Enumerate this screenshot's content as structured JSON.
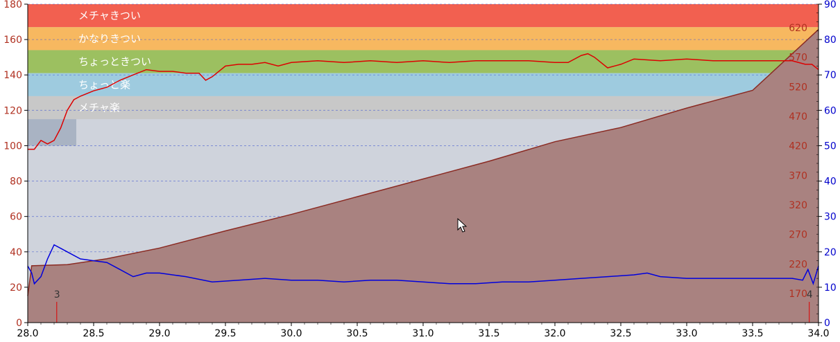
{
  "chart_data": {
    "type": "line",
    "title": "",
    "xlabel": "",
    "ylabel": "",
    "x_axis": {
      "range": [
        28.0,
        34.0
      ],
      "ticks": [
        "28.0",
        "28.5",
        "29.0",
        "29.5",
        "30.0",
        "30.5",
        "31.0",
        "31.5",
        "32.0",
        "32.5",
        "33.0",
        "33.5",
        "34.0"
      ]
    },
    "left_axis": {
      "range": [
        0,
        180
      ],
      "ticks": [
        "0",
        "20",
        "40",
        "60",
        "80",
        "100",
        "120",
        "140",
        "160",
        "180"
      ]
    },
    "right_axis_blue": {
      "range": [
        0,
        90
      ],
      "ticks": [
        "0",
        "10",
        "20",
        "30",
        "40",
        "50",
        "60",
        "70",
        "80",
        "90"
      ],
      "color": "#0000cc"
    },
    "right_axis_inner": {
      "ticks": [
        "170",
        "220",
        "270",
        "320",
        "370",
        "420",
        "470",
        "520",
        "570",
        "620"
      ],
      "color": "#b03020"
    },
    "zones": [
      {
        "label": "メチャきつい",
        "from": 167,
        "to": 180,
        "color": "#f26050"
      },
      {
        "label": "かなりきつい",
        "from": 154,
        "to": 167,
        "color": "#f7b860"
      },
      {
        "label": "ちょっときつい",
        "from": 141,
        "to": 154,
        "color": "#9cc060"
      },
      {
        "label": "ちょっと楽",
        "from": 128,
        "to": 141,
        "color": "#9ecbdf"
      },
      {
        "label": "メチャ楽",
        "from": 115,
        "to": 128,
        "color": "#c8c8c8"
      }
    ],
    "markers": [
      {
        "label": "3",
        "x": 28.22
      },
      {
        "label": "4",
        "x": 33.93
      }
    ],
    "series": [
      {
        "axis": "left",
        "color": "#dd0000",
        "x": [
          28.0,
          28.05,
          28.1,
          28.15,
          28.2,
          28.25,
          28.3,
          28.35,
          28.4,
          28.5,
          28.6,
          28.7,
          28.8,
          28.9,
          29.0,
          29.1,
          29.2,
          29.3,
          29.35,
          29.4,
          29.5,
          29.6,
          29.7,
          29.8,
          29.9,
          30.0,
          30.2,
          30.4,
          30.6,
          30.8,
          31.0,
          31.2,
          31.4,
          31.6,
          31.8,
          32.0,
          32.1,
          32.2,
          32.25,
          32.3,
          32.4,
          32.5,
          32.6,
          32.8,
          33.0,
          33.2,
          33.4,
          33.6,
          33.8,
          33.9,
          33.95,
          34.0
        ],
        "values": [
          98,
          98,
          103,
          101,
          103,
          110,
          120,
          126,
          128,
          131,
          133,
          137,
          140,
          143,
          142,
          142,
          141,
          141,
          137,
          139,
          145,
          146,
          146,
          147,
          145,
          147,
          148,
          147,
          148,
          147,
          148,
          147,
          148,
          148,
          148,
          147,
          147,
          151,
          152,
          150,
          144,
          146,
          149,
          148,
          149,
          148,
          148,
          148,
          148,
          146,
          146,
          143
        ]
      },
      {
        "axis": "right_blue",
        "color": "#0000dd",
        "x": [
          28.0,
          28.03,
          28.05,
          28.1,
          28.15,
          28.2,
          28.25,
          28.3,
          28.4,
          28.5,
          28.6,
          28.7,
          28.8,
          28.9,
          29.0,
          29.2,
          29.4,
          29.6,
          29.8,
          30.0,
          30.2,
          30.4,
          30.6,
          30.8,
          31.0,
          31.2,
          31.4,
          31.6,
          31.8,
          32.0,
          32.2,
          32.4,
          32.6,
          32.7,
          32.8,
          33.0,
          33.2,
          33.4,
          33.6,
          33.8,
          33.88,
          33.92,
          33.96,
          34.0
        ],
        "values": [
          16,
          14,
          11,
          13,
          18,
          22,
          21,
          20,
          18,
          17.5,
          17,
          15,
          13,
          14,
          14,
          13,
          11.5,
          12,
          12.5,
          12,
          12,
          11.5,
          12,
          12,
          11.5,
          11,
          11,
          11.5,
          11.5,
          12,
          12.5,
          13,
          13.5,
          14,
          13,
          12.5,
          12.5,
          12.5,
          12.5,
          12.5,
          12,
          15,
          11,
          16
        ]
      },
      {
        "axis": "right_inner",
        "color": "#8a2a22",
        "fill": "#a98280",
        "x": [
          28.0,
          28.03,
          28.3,
          28.6,
          29.0,
          29.5,
          30.0,
          30.5,
          31.0,
          31.5,
          32.0,
          32.5,
          33.0,
          33.5,
          34.0
        ],
        "values": [
          166,
          217,
          219,
          229,
          247,
          276,
          304,
          334,
          364,
          394,
          427,
          451,
          484,
          514,
          617
        ]
      }
    ]
  }
}
